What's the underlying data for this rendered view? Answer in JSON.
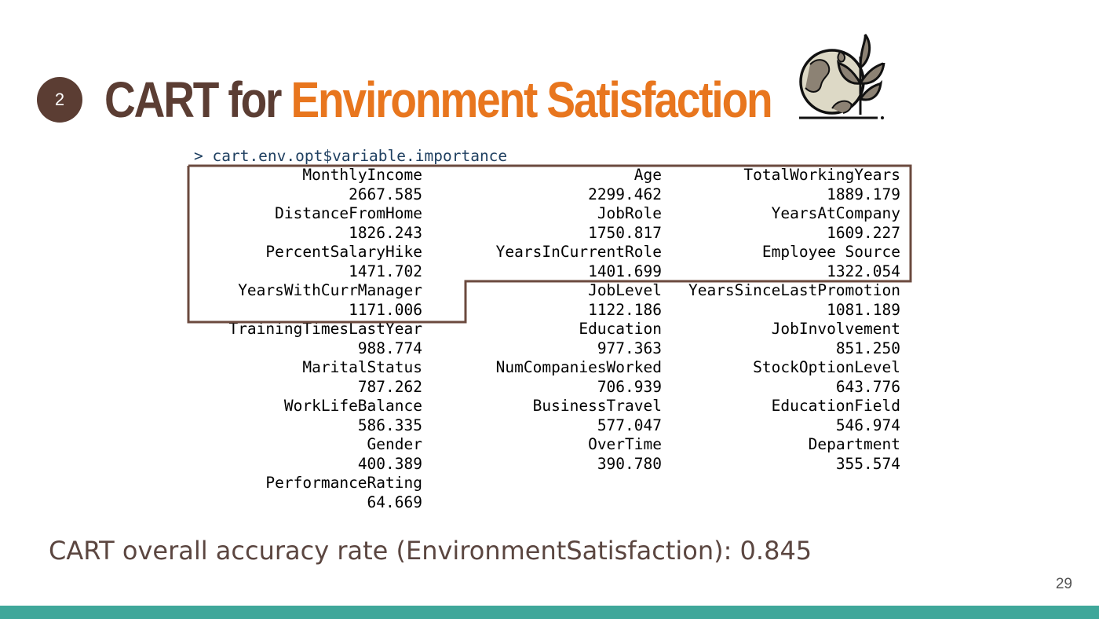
{
  "slide": {
    "badge_number": "2",
    "title_part1": "CART for ",
    "title_part2": "Environment Satisfaction",
    "logo_icon": "earth-plant-icon",
    "colors": {
      "title_dark": "#5b3d33",
      "title_accent": "#e8761e",
      "footer_bar": "#3fa79a",
      "highlight_box": "#6b4a3e"
    }
  },
  "console": {
    "command": "> cart.env.opt$variable.importance",
    "variables": [
      [
        "MonthlyIncome",
        "2667.585"
      ],
      [
        "Age",
        "2299.462"
      ],
      [
        "TotalWorkingYears",
        "1889.179"
      ],
      [
        "DistanceFromHome",
        "1826.243"
      ],
      [
        "JobRole",
        "1750.817"
      ],
      [
        "YearsAtCompany",
        "1609.227"
      ],
      [
        "PercentSalaryHike",
        "1471.702"
      ],
      [
        "YearsInCurrentRole",
        "1401.699"
      ],
      [
        "Employee Source",
        "1322.054"
      ],
      [
        "YearsWithCurrManager",
        "1171.006"
      ],
      [
        "JobLevel",
        "1122.186"
      ],
      [
        "YearsSinceLastPromotion",
        "1081.189"
      ],
      [
        "TrainingTimesLastYear",
        "988.774"
      ],
      [
        "Education",
        "977.363"
      ],
      [
        "JobInvolvement",
        "851.250"
      ],
      [
        "MaritalStatus",
        "787.262"
      ],
      [
        "NumCompaniesWorked",
        "706.939"
      ],
      [
        "StockOptionLevel",
        "643.776"
      ],
      [
        "WorkLifeBalance",
        "586.335"
      ],
      [
        "BusinessTravel",
        "577.047"
      ],
      [
        "EducationField",
        "546.974"
      ],
      [
        "Gender",
        "400.389"
      ],
      [
        "OverTime",
        "390.780"
      ],
      [
        "Department",
        "355.574"
      ],
      [
        "PerformanceRating",
        "64.669"
      ]
    ]
  },
  "accuracy_text": "CART overall accuracy rate (EnvironmentSatisfaction): 0.845",
  "page_number": "29"
}
